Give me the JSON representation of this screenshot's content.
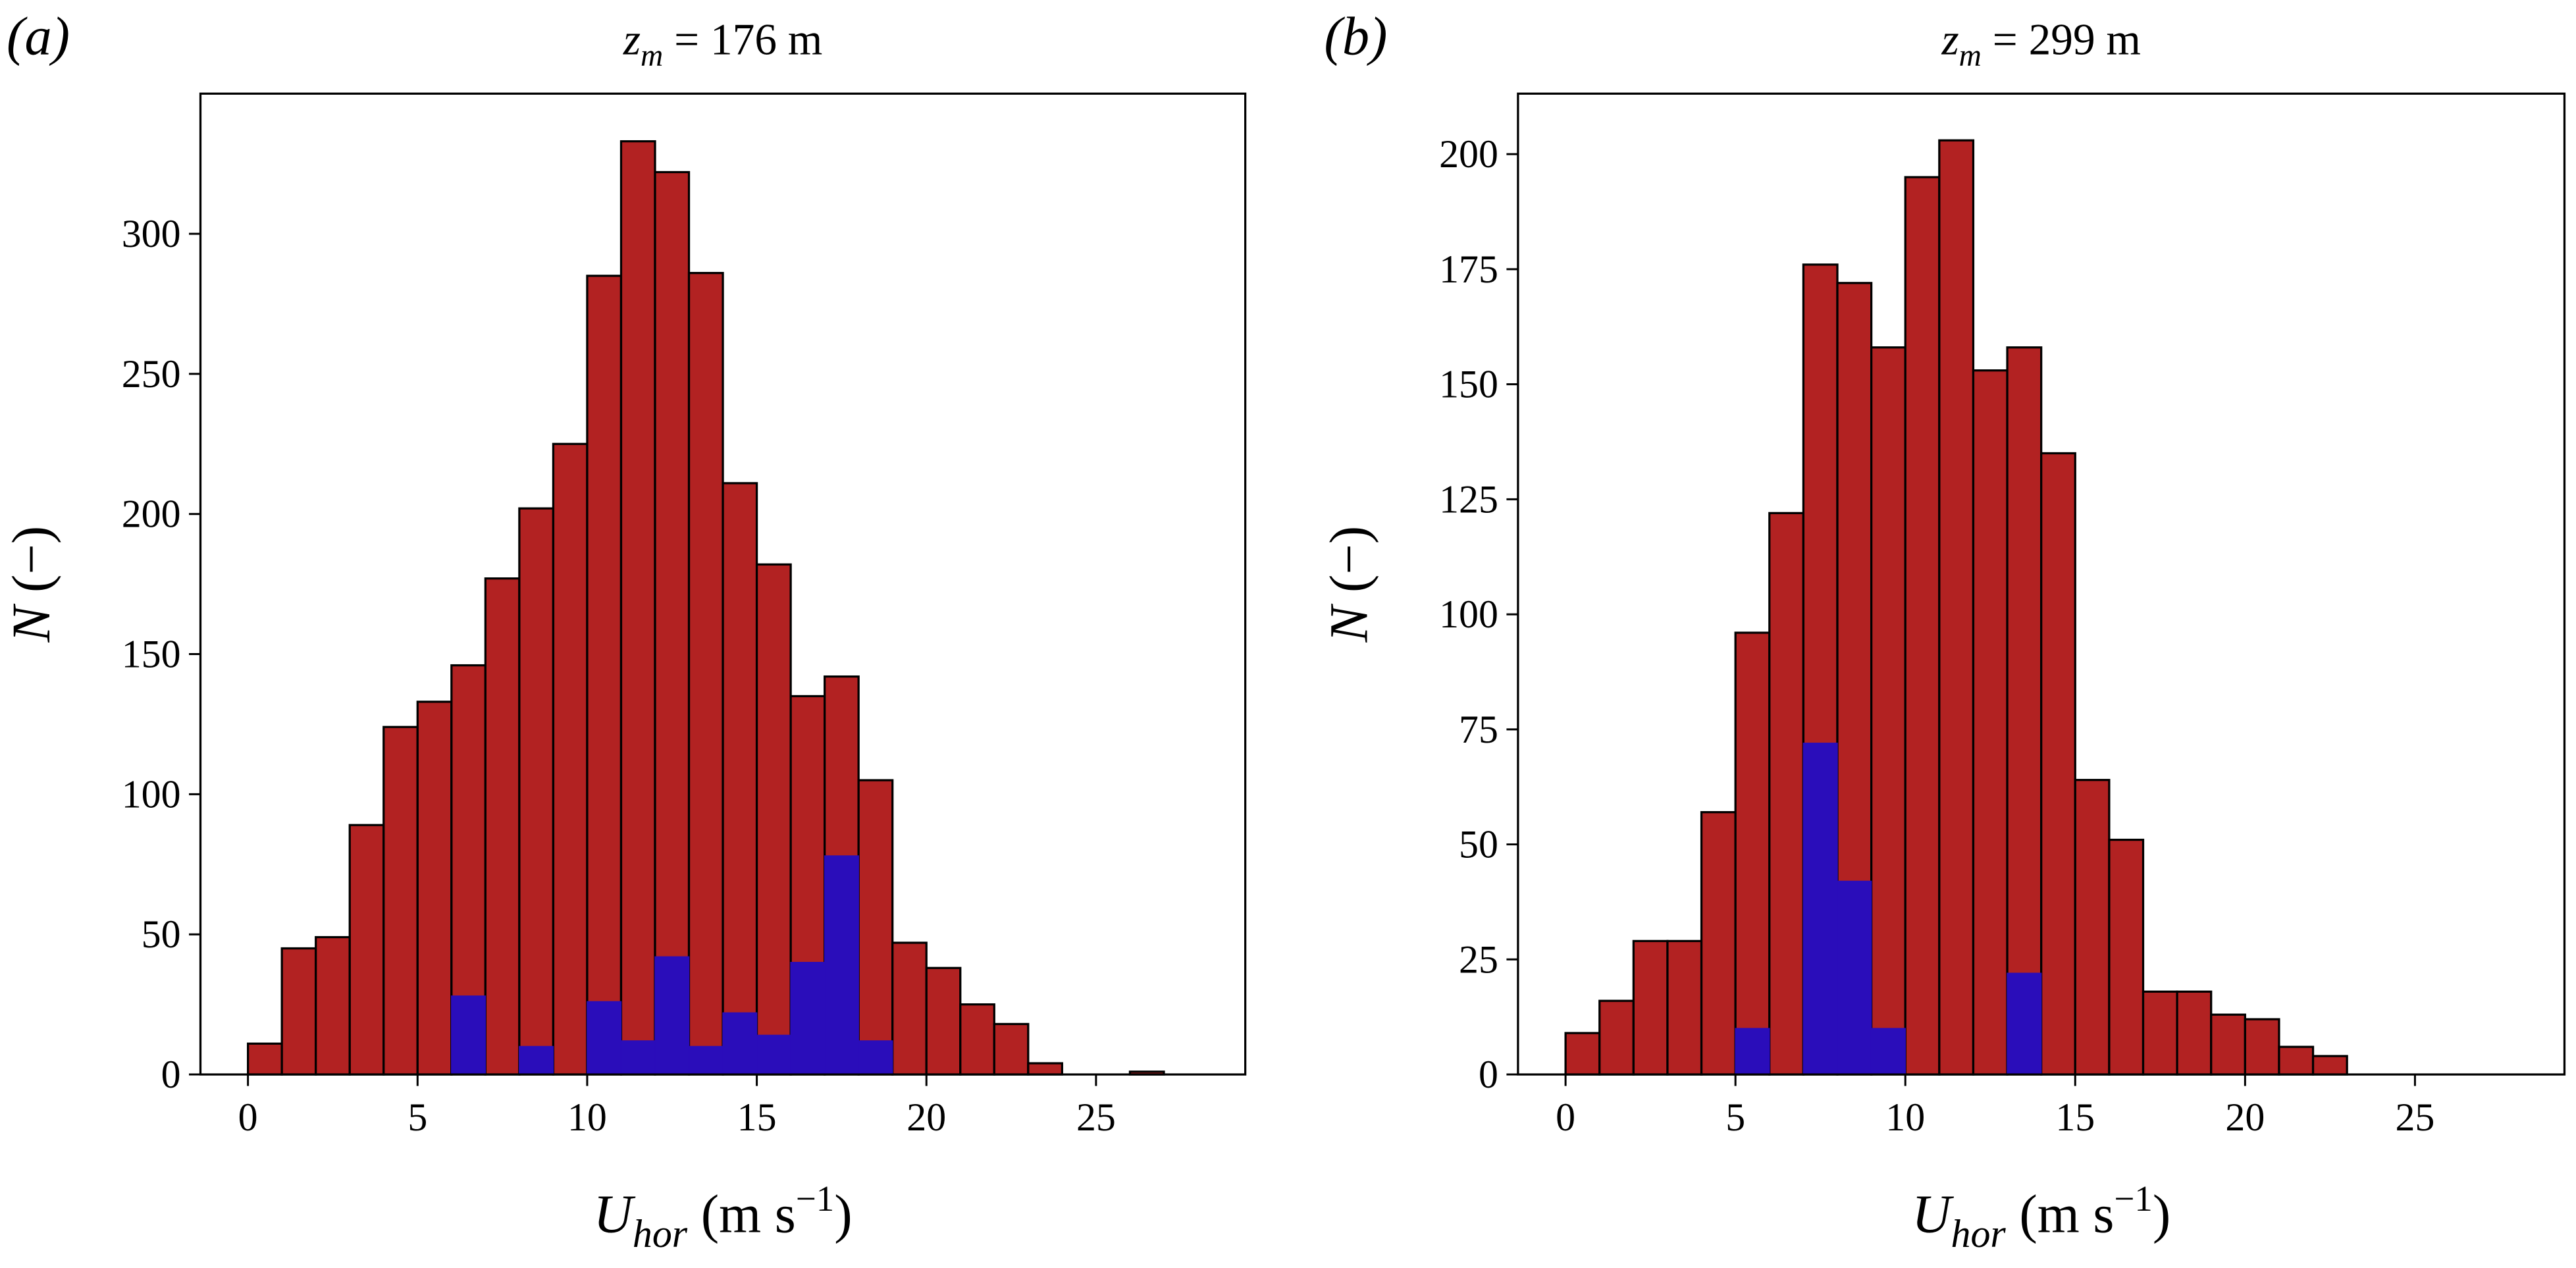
{
  "chart_data": [
    {
      "type": "histogram",
      "panel_label": "(a)",
      "title": {
        "symbol": "z",
        "subscript": "m",
        "text": " = 176 m"
      },
      "xlabel": {
        "symbol": "U",
        "subscript": "hor",
        "text": " (m s",
        "superscript": "−1",
        "close": ")"
      },
      "ylabel": {
        "symbol": "N",
        "text": " (−)"
      },
      "bins": [
        0,
        1,
        2,
        3,
        4,
        5,
        6,
        7,
        8,
        9,
        10,
        11,
        12,
        13,
        14,
        15,
        16,
        17,
        18,
        19,
        20,
        21,
        22,
        23,
        24,
        25,
        26,
        27,
        28
      ],
      "series": [
        {
          "color": "#b22222",
          "values": [
            11,
            45,
            49,
            89,
            124,
            133,
            146,
            177,
            202,
            225,
            285,
            333,
            322,
            286,
            211,
            182,
            135,
            142,
            105,
            47,
            38,
            25,
            18,
            4,
            0,
            0,
            1,
            0
          ]
        },
        {
          "color": "#2a0dba",
          "values": [
            0,
            0,
            0,
            0,
            0,
            0,
            28,
            0,
            10,
            0,
            26,
            12,
            42,
            10,
            22,
            14,
            40,
            78,
            12,
            0,
            0,
            0,
            0,
            0,
            0,
            0,
            0,
            0
          ]
        }
      ],
      "xlim": [
        -1.4,
        29.4
      ],
      "ylim": [
        0,
        350
      ],
      "xticks": [
        0,
        5,
        10,
        15,
        20,
        25
      ],
      "yticks": [
        0,
        50,
        100,
        150,
        200,
        250,
        300
      ]
    },
    {
      "type": "histogram",
      "panel_label": "(b)",
      "title": {
        "symbol": "z",
        "subscript": "m",
        "text": " = 299 m"
      },
      "xlabel": {
        "symbol": "U",
        "subscript": "hor",
        "text": " (m s",
        "superscript": "−1",
        "close": ")"
      },
      "ylabel": {
        "symbol": "N",
        "text": " (−)"
      },
      "bins": [
        0,
        1,
        2,
        3,
        4,
        5,
        6,
        7,
        8,
        9,
        10,
        11,
        12,
        13,
        14,
        15,
        16,
        17,
        18,
        19,
        20,
        21,
        22,
        23,
        24,
        25,
        26,
        27,
        28
      ],
      "series": [
        {
          "color": "#b22222",
          "values": [
            9,
            16,
            29,
            29,
            57,
            96,
            122,
            176,
            172,
            158,
            195,
            203,
            153,
            158,
            135,
            64,
            51,
            18,
            18,
            13,
            12,
            6,
            4,
            0,
            0,
            0,
            0,
            0
          ]
        },
        {
          "color": "#2a0dba",
          "values": [
            0,
            0,
            0,
            0,
            0,
            10,
            0,
            72,
            42,
            10,
            0,
            0,
            0,
            22,
            0,
            0,
            0,
            0,
            0,
            0,
            0,
            0,
            0,
            0,
            0,
            0,
            0,
            0
          ]
        }
      ],
      "xlim": [
        -1.4,
        29.4
      ],
      "ylim": [
        0,
        213.15
      ],
      "xticks": [
        0,
        5,
        10,
        15,
        20,
        25
      ],
      "yticks": [
        0,
        25,
        50,
        75,
        100,
        125,
        150,
        175,
        200
      ]
    }
  ]
}
